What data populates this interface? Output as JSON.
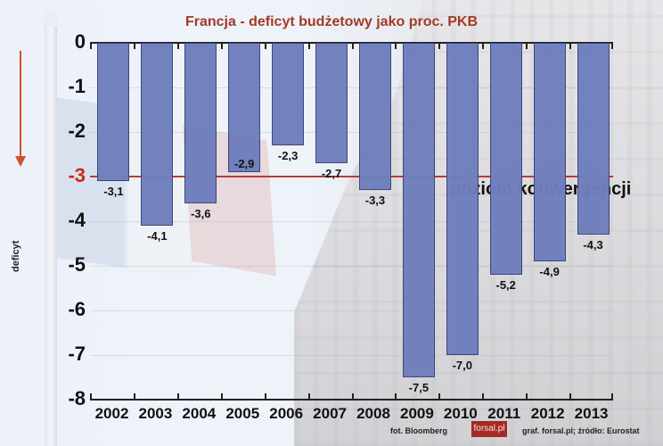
{
  "chart_data": {
    "type": "bar",
    "title": "Francja - deficyt budżetowy jako proc. PKB",
    "xlabel": "",
    "ylabel": "deficyt",
    "ylim": [
      -8,
      0
    ],
    "yticks": [
      "0",
      "-1",
      "-2",
      "-3",
      "-4",
      "-5",
      "-6",
      "-7",
      "-8"
    ],
    "grid": true,
    "categories": [
      "2002",
      "2003",
      "2004",
      "2005",
      "2006",
      "2007",
      "2008",
      "2009",
      "2010",
      "2011",
      "2012",
      "2013"
    ],
    "values": [
      -3.1,
      -4.1,
      -3.6,
      -2.9,
      -2.3,
      -2.7,
      -3.3,
      -7.5,
      -7.0,
      -5.2,
      -4.9,
      -4.3
    ],
    "value_labels": [
      "-3,1",
      "-4,1",
      "-3,6",
      "-2,9",
      "-2,3",
      "-2,7",
      "-3,3",
      "-7,5",
      "-7,0",
      "-5,2",
      "-4,9",
      "-4,3"
    ],
    "reference_line": {
      "value": -3,
      "label": "poziom konwergencji",
      "color": "#c0241a"
    },
    "bar_color": "#6f7fbd",
    "title_color": "#a23a24"
  },
  "credits": {
    "photo": "fot. Bloomberg",
    "logo": "forsal.pl",
    "source": "graf. forsal.pl;  źródło: Eurostat"
  }
}
